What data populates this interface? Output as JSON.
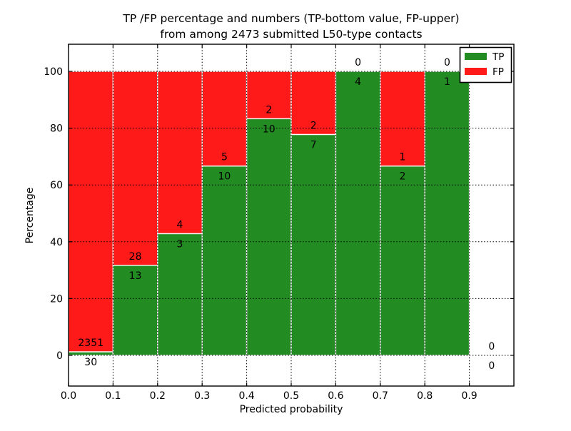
{
  "chart_data": {
    "type": "bar",
    "stacked": true,
    "title": "TP /FP percentage and numbers (TP-bottom value, FP-upper) from among 2473 submitted L50-type contacts",
    "title_lines": [
      "TP /FP percentage and numbers (TP-bottom value, FP-upper)",
      "from among 2473 submitted L50-type contacts"
    ],
    "xlabel": "Predicted probability",
    "ylabel": "Percentage",
    "xlim": [
      0.0,
      1.0
    ],
    "ylim": [
      -11,
      109.5
    ],
    "xticks": [
      0.0,
      0.1,
      0.2,
      0.3,
      0.4,
      0.5,
      0.6,
      0.7,
      0.8,
      0.9
    ],
    "yticks": [
      0,
      20,
      40,
      60,
      80,
      100
    ],
    "grid": true,
    "colors": {
      "tp": "#228b22",
      "fp": "#ff1a1a",
      "bar_edge": "#ffffff"
    },
    "legend": {
      "position": "upper-right",
      "entries": [
        {
          "label": "TP",
          "color": "#228b22"
        },
        {
          "label": "FP",
          "color": "#ff1a1a"
        }
      ]
    },
    "bins": [
      {
        "range": [
          0.0,
          0.1
        ],
        "tp_count": 30,
        "fp_count": 2351,
        "tp_pct": 1.26,
        "fp_pct": 98.74
      },
      {
        "range": [
          0.1,
          0.2
        ],
        "tp_count": 13,
        "fp_count": 28,
        "tp_pct": 31.71,
        "fp_pct": 68.29
      },
      {
        "range": [
          0.2,
          0.3
        ],
        "tp_count": 3,
        "fp_count": 4,
        "tp_pct": 42.86,
        "fp_pct": 57.14
      },
      {
        "range": [
          0.3,
          0.4
        ],
        "tp_count": 10,
        "fp_count": 5,
        "tp_pct": 66.67,
        "fp_pct": 33.33
      },
      {
        "range": [
          0.4,
          0.5
        ],
        "tp_count": 10,
        "fp_count": 2,
        "tp_pct": 83.33,
        "fp_pct": 16.67
      },
      {
        "range": [
          0.5,
          0.6
        ],
        "tp_count": 7,
        "fp_count": 2,
        "tp_pct": 77.78,
        "fp_pct": 22.22
      },
      {
        "range": [
          0.6,
          0.7
        ],
        "tp_count": 4,
        "fp_count": 0,
        "tp_pct": 100.0,
        "fp_pct": 0.0
      },
      {
        "range": [
          0.7,
          0.8
        ],
        "tp_count": 2,
        "fp_count": 1,
        "tp_pct": 66.67,
        "fp_pct": 33.33
      },
      {
        "range": [
          0.8,
          0.9
        ],
        "tp_count": 1,
        "fp_count": 0,
        "tp_pct": 100.0,
        "fp_pct": 0.0
      },
      {
        "range": [
          0.9,
          1.0
        ],
        "tp_count": 0,
        "fp_count": 0,
        "tp_pct": 0.0,
        "fp_pct": 0.0
      }
    ]
  }
}
